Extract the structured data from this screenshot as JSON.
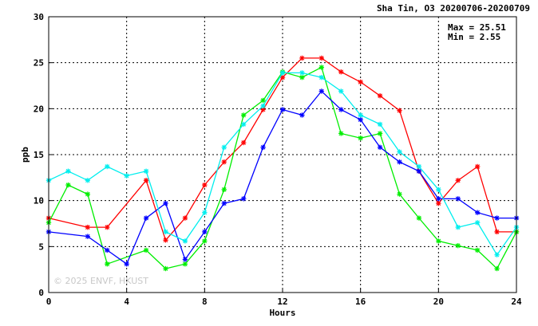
{
  "chart_data": {
    "type": "line",
    "title": "Sha Tin, O3 20200706-20200709",
    "xlabel": "Hours",
    "ylabel": "ppb",
    "xlim": [
      0,
      24
    ],
    "ylim": [
      0,
      30
    ],
    "x_ticks": [
      0,
      4,
      8,
      12,
      16,
      20,
      24
    ],
    "y_ticks": [
      0,
      5,
      10,
      15,
      20,
      25,
      30
    ],
    "grid": true,
    "stats": {
      "max": "Max = 25.51",
      "min": "Min =  2.55"
    },
    "watermark": "© 2025 ENVF, HKUST",
    "x": [
      0,
      1,
      2,
      3,
      4,
      5,
      6,
      7,
      8,
      9,
      10,
      11,
      12,
      13,
      14,
      15,
      16,
      17,
      18,
      19,
      20,
      21,
      22,
      23,
      24
    ],
    "series": [
      {
        "color": "#ff0000",
        "values": [
          8.1,
          null,
          7.1,
          7.1,
          null,
          12.2,
          5.7,
          8.1,
          11.7,
          14.2,
          16.3,
          19.9,
          23.4,
          25.5,
          25.5,
          24.0,
          22.9,
          21.4,
          19.8,
          13.2,
          9.7,
          12.2,
          13.7,
          6.6,
          6.6
        ]
      },
      {
        "color": "#00ee00",
        "values": [
          7.6,
          11.7,
          10.7,
          3.1,
          null,
          4.6,
          2.6,
          3.1,
          5.6,
          11.2,
          19.3,
          20.9,
          24.0,
          23.4,
          24.5,
          17.3,
          16.8,
          17.3,
          10.7,
          8.1,
          5.6,
          5.1,
          4.6,
          2.6,
          6.6
        ]
      },
      {
        "color": "#0000ff",
        "values": [
          6.6,
          null,
          6.1,
          4.6,
          3.1,
          8.1,
          9.7,
          3.6,
          6.6,
          9.7,
          10.2,
          15.8,
          19.9,
          19.3,
          21.9,
          19.9,
          18.8,
          15.8,
          14.2,
          13.2,
          10.2,
          10.2,
          8.7,
          8.1,
          8.1
        ]
      },
      {
        "color": "#00eeee",
        "values": [
          12.2,
          13.2,
          12.2,
          13.7,
          12.7,
          13.2,
          6.6,
          5.6,
          8.7,
          15.8,
          18.3,
          20.3,
          23.9,
          23.9,
          23.4,
          21.9,
          19.3,
          18.3,
          15.3,
          13.7,
          11.2,
          7.1,
          7.6,
          4.1,
          7.1
        ]
      }
    ]
  }
}
